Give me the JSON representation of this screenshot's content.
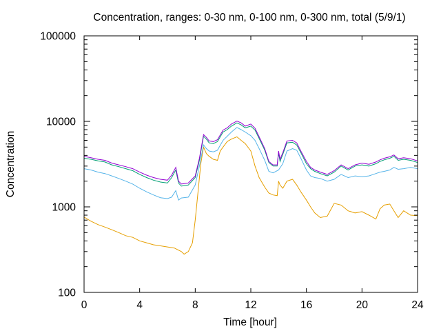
{
  "chart_data": {
    "type": "line",
    "title": "Concentration, ranges: 0-30 nm, 0-100 nm, 0-300 nm, total (5/9/1)",
    "xlabel": "Time [hour]",
    "ylabel": "Concentration",
    "xlim": [
      0,
      24
    ],
    "ylim": [
      100,
      100000
    ],
    "yscale": "log",
    "grid": false,
    "x_ticks": [
      0,
      4,
      8,
      12,
      16,
      20,
      24
    ],
    "x_tick_labels": [
      "0",
      "4",
      "8",
      "12",
      "16",
      "20",
      "24"
    ],
    "y_ticks": [
      100,
      1000,
      10000,
      100000
    ],
    "y_tick_labels": [
      "100",
      "1000",
      "10000",
      "100000"
    ],
    "colors": {
      "range_0_30": "#e69f00",
      "range_0_100": "#56b4e9",
      "range_0_300": "#009e73",
      "total": "#9400d3"
    },
    "series": [
      {
        "key": "range_0_30",
        "color": "#e69f00",
        "points": [
          [
            0,
            760
          ],
          [
            0.5,
            680
          ],
          [
            1,
            620
          ],
          [
            1.5,
            580
          ],
          [
            2,
            540
          ],
          [
            2.5,
            500
          ],
          [
            3,
            460
          ],
          [
            3.5,
            440
          ],
          [
            4,
            400
          ],
          [
            4.5,
            380
          ],
          [
            5,
            360
          ],
          [
            5.5,
            350
          ],
          [
            6,
            340
          ],
          [
            6.5,
            330
          ],
          [
            7,
            300
          ],
          [
            7.2,
            280
          ],
          [
            7.5,
            300
          ],
          [
            7.8,
            380
          ],
          [
            8,
            700
          ],
          [
            8.2,
            1500
          ],
          [
            8.4,
            3200
          ],
          [
            8.6,
            5000
          ],
          [
            8.8,
            4200
          ],
          [
            9,
            3900
          ],
          [
            9.3,
            3600
          ],
          [
            9.6,
            3500
          ],
          [
            9.8,
            4500
          ],
          [
            10,
            5000
          ],
          [
            10.3,
            5800
          ],
          [
            10.6,
            6200
          ],
          [
            11,
            6600
          ],
          [
            11.3,
            6000
          ],
          [
            11.6,
            5500
          ],
          [
            12,
            4500
          ],
          [
            12.3,
            3000
          ],
          [
            12.6,
            2200
          ],
          [
            13,
            1700
          ],
          [
            13.3,
            1450
          ],
          [
            13.6,
            1380
          ],
          [
            13.9,
            1350
          ],
          [
            14,
            2000
          ],
          [
            14.1,
            1800
          ],
          [
            14.3,
            1650
          ],
          [
            14.6,
            2000
          ],
          [
            15,
            2100
          ],
          [
            15.3,
            1800
          ],
          [
            15.6,
            1500
          ],
          [
            16,
            1200
          ],
          [
            16.3,
            1000
          ],
          [
            16.6,
            850
          ],
          [
            17,
            750
          ],
          [
            17.5,
            780
          ],
          [
            18,
            1100
          ],
          [
            18.5,
            1050
          ],
          [
            19,
            900
          ],
          [
            19.5,
            850
          ],
          [
            20,
            880
          ],
          [
            20.5,
            800
          ],
          [
            21,
            720
          ],
          [
            21.3,
            950
          ],
          [
            21.6,
            1050
          ],
          [
            22,
            1080
          ],
          [
            22.3,
            900
          ],
          [
            22.6,
            750
          ],
          [
            23,
            900
          ],
          [
            23.5,
            800
          ],
          [
            24,
            790
          ]
        ]
      },
      {
        "key": "range_0_100",
        "color": "#56b4e9",
        "points": [
          [
            0,
            2800
          ],
          [
            0.5,
            2700
          ],
          [
            1,
            2550
          ],
          [
            1.5,
            2450
          ],
          [
            2,
            2300
          ],
          [
            2.5,
            2150
          ],
          [
            3,
            2000
          ],
          [
            3.5,
            1850
          ],
          [
            4,
            1650
          ],
          [
            4.5,
            1500
          ],
          [
            5,
            1380
          ],
          [
            5.5,
            1280
          ],
          [
            6,
            1250
          ],
          [
            6.3,
            1300
          ],
          [
            6.6,
            1550
          ],
          [
            6.8,
            1200
          ],
          [
            7,
            1270
          ],
          [
            7.5,
            1300
          ],
          [
            8,
            1800
          ],
          [
            8.3,
            3000
          ],
          [
            8.6,
            5300
          ],
          [
            8.8,
            4800
          ],
          [
            9,
            4500
          ],
          [
            9.3,
            4400
          ],
          [
            9.6,
            4600
          ],
          [
            10,
            6000
          ],
          [
            10.3,
            6700
          ],
          [
            10.6,
            7500
          ],
          [
            11,
            8500
          ],
          [
            11.3,
            8000
          ],
          [
            11.6,
            7500
          ],
          [
            12,
            6800
          ],
          [
            12.3,
            6000
          ],
          [
            12.6,
            4800
          ],
          [
            13,
            3500
          ],
          [
            13.3,
            2600
          ],
          [
            13.6,
            2500
          ],
          [
            14,
            2700
          ],
          [
            14.3,
            3200
          ],
          [
            14.6,
            4500
          ],
          [
            15,
            4800
          ],
          [
            15.3,
            4600
          ],
          [
            15.6,
            3700
          ],
          [
            16,
            2700
          ],
          [
            16.3,
            2300
          ],
          [
            16.6,
            2200
          ],
          [
            17,
            2150
          ],
          [
            17.5,
            2000
          ],
          [
            18,
            2100
          ],
          [
            18.5,
            2400
          ],
          [
            19,
            2200
          ],
          [
            19.5,
            2300
          ],
          [
            20,
            2250
          ],
          [
            20.5,
            2300
          ],
          [
            21,
            2450
          ],
          [
            21.3,
            2550
          ],
          [
            21.6,
            2600
          ],
          [
            22,
            2700
          ],
          [
            22.3,
            2900
          ],
          [
            22.6,
            2750
          ],
          [
            23,
            2800
          ],
          [
            23.5,
            2900
          ],
          [
            24,
            2800
          ]
        ]
      },
      {
        "key": "range_0_300",
        "color": "#009e73",
        "points": [
          [
            0,
            3700
          ],
          [
            0.5,
            3600
          ],
          [
            1,
            3450
          ],
          [
            1.5,
            3350
          ],
          [
            2,
            3100
          ],
          [
            2.5,
            2950
          ],
          [
            3,
            2800
          ],
          [
            3.5,
            2650
          ],
          [
            4,
            2400
          ],
          [
            4.5,
            2200
          ],
          [
            5,
            2050
          ],
          [
            5.5,
            1950
          ],
          [
            6,
            1900
          ],
          [
            6.3,
            2200
          ],
          [
            6.6,
            2700
          ],
          [
            6.8,
            1900
          ],
          [
            7,
            1750
          ],
          [
            7.5,
            1800
          ],
          [
            8,
            2200
          ],
          [
            8.3,
            3500
          ],
          [
            8.6,
            6700
          ],
          [
            8.8,
            6200
          ],
          [
            9,
            5600
          ],
          [
            9.3,
            5500
          ],
          [
            9.6,
            5800
          ],
          [
            10,
            7500
          ],
          [
            10.3,
            8000
          ],
          [
            10.6,
            8800
          ],
          [
            11,
            9600
          ],
          [
            11.3,
            9100
          ],
          [
            11.6,
            8400
          ],
          [
            12,
            8800
          ],
          [
            12.3,
            7900
          ],
          [
            12.6,
            6300
          ],
          [
            13,
            4600
          ],
          [
            13.3,
            3300
          ],
          [
            13.6,
            3000
          ],
          [
            13.9,
            3000
          ],
          [
            14,
            4300
          ],
          [
            14.1,
            3400
          ],
          [
            14.3,
            4100
          ],
          [
            14.6,
            5600
          ],
          [
            15,
            5700
          ],
          [
            15.3,
            5300
          ],
          [
            15.6,
            4300
          ],
          [
            16,
            3200
          ],
          [
            16.3,
            2800
          ],
          [
            16.6,
            2600
          ],
          [
            17,
            2450
          ],
          [
            17.5,
            2300
          ],
          [
            18,
            2550
          ],
          [
            18.5,
            3000
          ],
          [
            19,
            2700
          ],
          [
            19.5,
            3000
          ],
          [
            20,
            3100
          ],
          [
            20.5,
            3000
          ],
          [
            21,
            3200
          ],
          [
            21.3,
            3400
          ],
          [
            21.6,
            3550
          ],
          [
            22,
            3700
          ],
          [
            22.3,
            3900
          ],
          [
            22.6,
            3500
          ],
          [
            23,
            3600
          ],
          [
            23.5,
            3500
          ],
          [
            24,
            3300
          ]
        ]
      },
      {
        "key": "total",
        "color": "#9400d3",
        "points": [
          [
            0,
            3900
          ],
          [
            0.5,
            3750
          ],
          [
            1,
            3600
          ],
          [
            1.5,
            3500
          ],
          [
            2,
            3250
          ],
          [
            2.5,
            3100
          ],
          [
            3,
            2950
          ],
          [
            3.5,
            2800
          ],
          [
            4,
            2550
          ],
          [
            4.5,
            2350
          ],
          [
            5,
            2200
          ],
          [
            5.5,
            2100
          ],
          [
            6,
            2050
          ],
          [
            6.3,
            2350
          ],
          [
            6.6,
            2900
          ],
          [
            6.8,
            2000
          ],
          [
            7,
            1850
          ],
          [
            7.5,
            1900
          ],
          [
            8,
            2300
          ],
          [
            8.3,
            3700
          ],
          [
            8.6,
            7000
          ],
          [
            8.8,
            6500
          ],
          [
            9,
            5900
          ],
          [
            9.3,
            5800
          ],
          [
            9.6,
            6100
          ],
          [
            10,
            7900
          ],
          [
            10.3,
            8400
          ],
          [
            10.6,
            9300
          ],
          [
            11,
            10100
          ],
          [
            11.3,
            9600
          ],
          [
            11.6,
            8800
          ],
          [
            12,
            9300
          ],
          [
            12.3,
            8300
          ],
          [
            12.6,
            6600
          ],
          [
            13,
            4800
          ],
          [
            13.3,
            3400
          ],
          [
            13.6,
            3100
          ],
          [
            13.9,
            3100
          ],
          [
            14,
            4500
          ],
          [
            14.1,
            3600
          ],
          [
            14.3,
            4300
          ],
          [
            14.6,
            5900
          ],
          [
            15,
            6000
          ],
          [
            15.3,
            5600
          ],
          [
            15.6,
            4500
          ],
          [
            16,
            3400
          ],
          [
            16.3,
            2900
          ],
          [
            16.6,
            2700
          ],
          [
            17,
            2550
          ],
          [
            17.5,
            2400
          ],
          [
            18,
            2650
          ],
          [
            18.5,
            3100
          ],
          [
            19,
            2800
          ],
          [
            19.5,
            3100
          ],
          [
            20,
            3250
          ],
          [
            20.5,
            3150
          ],
          [
            21,
            3350
          ],
          [
            21.3,
            3550
          ],
          [
            21.6,
            3700
          ],
          [
            22,
            3850
          ],
          [
            22.3,
            4050
          ],
          [
            22.6,
            3650
          ],
          [
            23,
            3750
          ],
          [
            23.5,
            3650
          ],
          [
            24,
            3450
          ]
        ]
      }
    ]
  }
}
